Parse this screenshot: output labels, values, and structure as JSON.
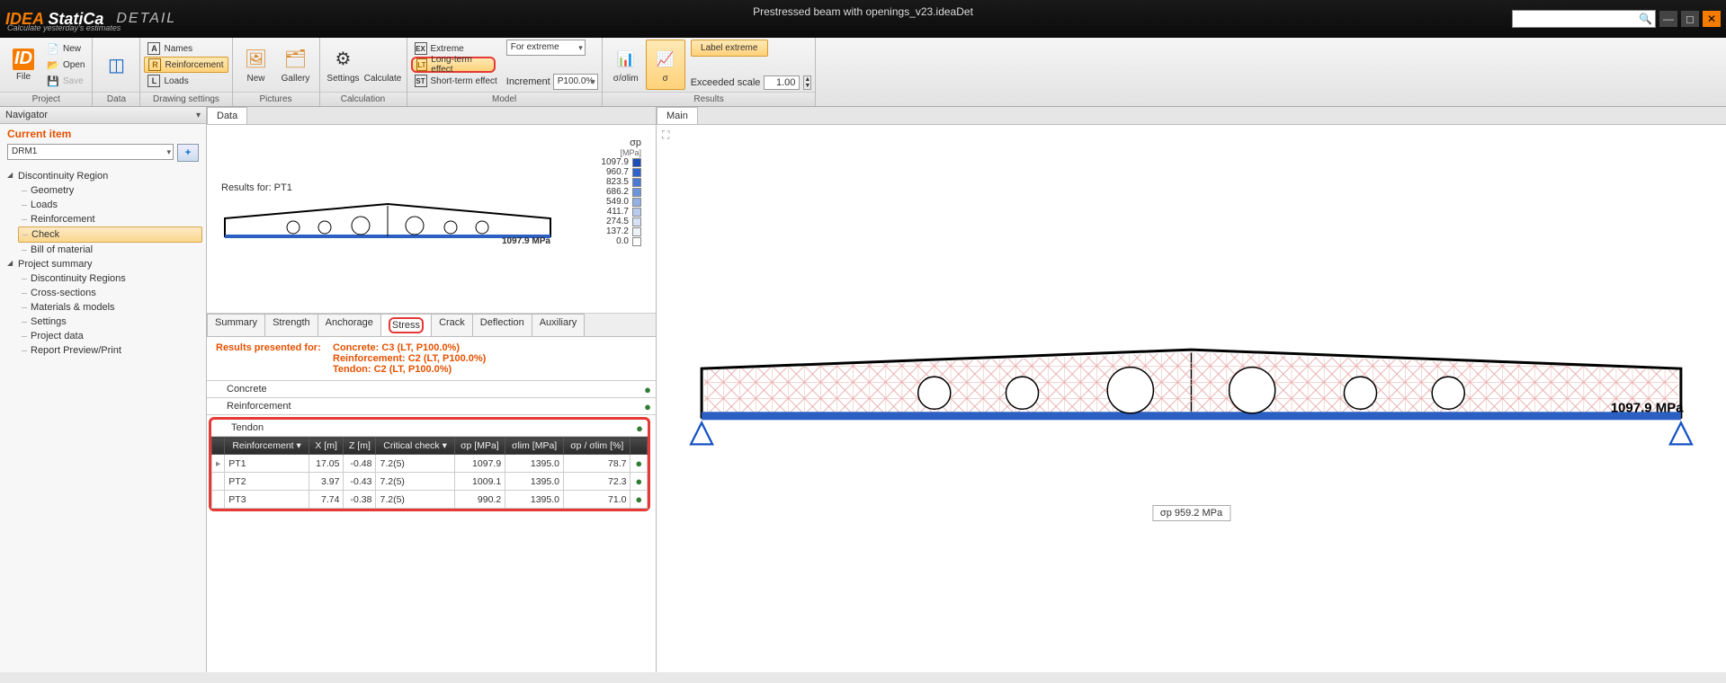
{
  "titlebar": {
    "logo_orange": "IDEA",
    "logo_white": " StatiCa",
    "product": "DETAIL",
    "tagline": "Calculate yesterday's estimates",
    "document": "Prestressed beam with openings_v23.ideaDet"
  },
  "ribbon": {
    "project": {
      "label": "Project",
      "file": "File"
    },
    "data": {
      "label": "Data",
      "new": "New",
      "open": "Open",
      "save": "Save"
    },
    "drawing": {
      "label": "Drawing settings",
      "names": "Names",
      "reinforcement": "Reinforcement",
      "loads": "Loads"
    },
    "pictures": {
      "label": "Pictures",
      "new": "New",
      "gallery": "Gallery"
    },
    "calculation": {
      "label": "Calculation",
      "settings": "Settings",
      "calculate": "Calculate"
    },
    "model": {
      "label": "Model",
      "extreme": "Extreme",
      "longterm": "Long-term effect",
      "shortterm": "Short-term effect",
      "for_extreme": "For extreme",
      "increment": "Increment",
      "increment_val": "P100.0%"
    },
    "results": {
      "label": "Results",
      "siglim": "σ/σlim",
      "sigma": "σ",
      "label_extreme": "Label extreme",
      "exceeded": "Exceeded scale",
      "exceeded_val": "1.00"
    }
  },
  "navigator": {
    "title": "Navigator",
    "current_item": "Current item",
    "combo": "DRM1",
    "tree": {
      "discontinuity": "Discontinuity Region",
      "geometry": "Geometry",
      "loads": "Loads",
      "reinforcement": "Reinforcement",
      "check": "Check",
      "bom": "Bill of material",
      "summary": "Project summary",
      "regions": "Discontinuity Regions",
      "cross": "Cross-sections",
      "materials": "Materials & models",
      "settings": "Settings",
      "projdata": "Project data",
      "report": "Report Preview/Print"
    }
  },
  "data_pane": {
    "tab": "Data",
    "results_for": "Results for: PT1",
    "sigma_label": "σp",
    "sigma_unit": "[MPa]",
    "max_label": "1097.9 MPa",
    "legend": {
      "values": [
        "1097.9",
        "960.7",
        "823.5",
        "686.2",
        "549.0",
        "411.7",
        "274.5",
        "137.2",
        "0.0"
      ],
      "colors": [
        "#1e4db7",
        "#2f63c9",
        "#4a7ad3",
        "#6d94db",
        "#93afe4",
        "#b8caed",
        "#d7e1f5",
        "#eef2fb",
        "#ffffff"
      ]
    },
    "result_tabs": [
      "Summary",
      "Strength",
      "Anchorage",
      "Stress",
      "Crack",
      "Deflection",
      "Auxiliary"
    ],
    "active_rtab": 3,
    "presented_label": "Results presented for:",
    "concrete_line": "Concrete: C3 (LT, P100.0%)",
    "reinf_line": "Reinforcement: C2 (LT, P100.0%)",
    "tendon_line": "Tendon: C2 (LT, P100.0%)",
    "rows": {
      "concrete": "Concrete",
      "reinforcement": "Reinforcement",
      "tendon": "Tendon"
    },
    "table": {
      "headers": [
        "Reinforcement ▾",
        "X [m]",
        "Z [m]",
        "Critical check ▾",
        "σp [MPa]",
        "σlim [MPa]",
        "σp / σlim [%]",
        ""
      ],
      "rows": [
        [
          "PT1",
          "17.05",
          "-0.48",
          "7.2(5)",
          "1097.9",
          "1395.0",
          "78.7"
        ],
        [
          "PT2",
          "3.97",
          "-0.43",
          "7.2(5)",
          "1009.1",
          "1395.0",
          "72.3"
        ],
        [
          "PT3",
          "7.74",
          "-0.38",
          "7.2(5)",
          "990.2",
          "1395.0",
          "71.0"
        ]
      ]
    }
  },
  "main_pane": {
    "tab": "Main",
    "max_label": "1097.9 MPa",
    "badge": "σp 959.2 MPa"
  }
}
